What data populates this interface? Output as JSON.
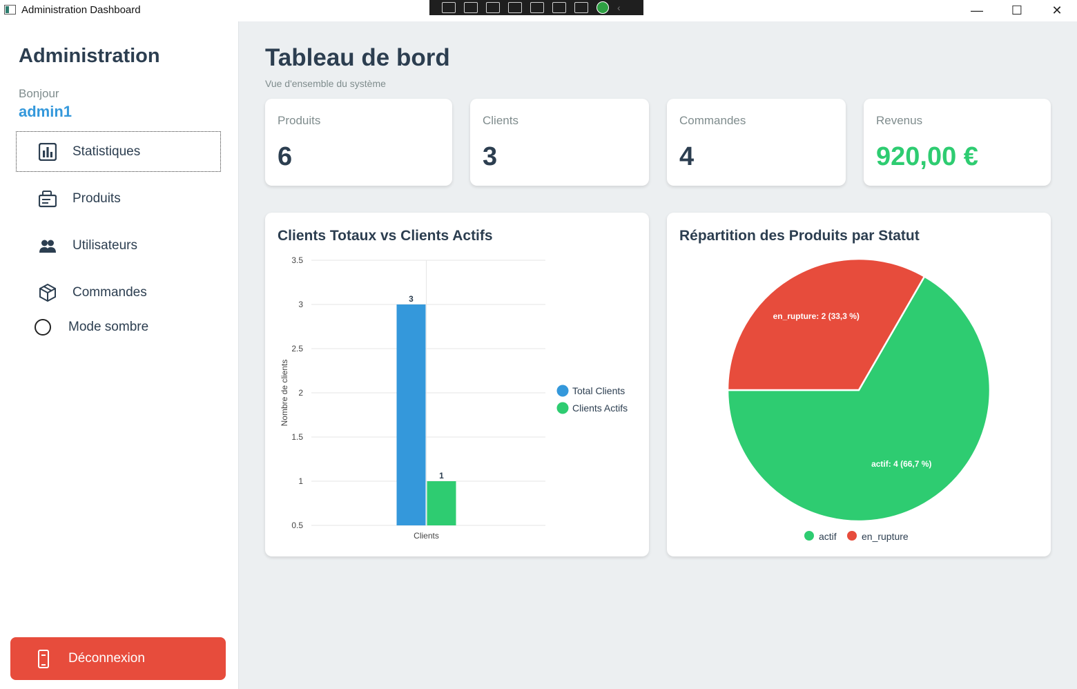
{
  "window": {
    "title": "Administration Dashboard",
    "controls": {
      "minimize": "—",
      "maximize": "☐",
      "close": "✕"
    }
  },
  "sidebar": {
    "brand": "Administration",
    "greeting": "Bonjour",
    "username": "admin1",
    "items": [
      {
        "label": "Statistiques",
        "icon": "bar-chart-icon",
        "active": true
      },
      {
        "label": "Produits",
        "icon": "products-icon",
        "active": false
      },
      {
        "label": "Utilisateurs",
        "icon": "users-icon",
        "active": false
      },
      {
        "label": "Commandes",
        "icon": "box-icon",
        "active": false
      }
    ],
    "dark_mode_label": "Mode sombre",
    "logout_label": "Déconnexion"
  },
  "header": {
    "title": "Tableau de bord",
    "subtitle": "Vue d'ensemble du système"
  },
  "stats": [
    {
      "label": "Produits",
      "value": "6"
    },
    {
      "label": "Clients",
      "value": "3"
    },
    {
      "label": "Commandes",
      "value": "4"
    },
    {
      "label": "Revenus",
      "value": "920,00 €"
    }
  ],
  "colors": {
    "accent": "#3498db",
    "green": "#2ecc71",
    "red": "#e74c3c",
    "text": "#2c3e50"
  },
  "chart_data": [
    {
      "type": "bar",
      "title": "Clients Totaux vs Clients Actifs",
      "categories": [
        "Clients"
      ],
      "ylabel": "Nombre de clients",
      "xlabel": "",
      "ylim": [
        0.5,
        3.5
      ],
      "yticks": [
        "0.5",
        "1",
        "1.5",
        "2",
        "2.5",
        "3",
        "3.5"
      ],
      "grid": true,
      "legend": "right",
      "series": [
        {
          "name": "Total Clients",
          "values": [
            3
          ],
          "labels": [
            "3"
          ],
          "color": "#3498db"
        },
        {
          "name": "Clients Actifs",
          "values": [
            1
          ],
          "labels": [
            "1"
          ],
          "color": "#2ecc71"
        }
      ]
    },
    {
      "type": "pie",
      "title": "Répartition des Produits par Statut",
      "legend": "bottom",
      "slices": [
        {
          "name": "actif",
          "value": 4,
          "label": "actif: 4 (66,7 %)",
          "color": "#2ecc71"
        },
        {
          "name": "en_rupture",
          "value": 2,
          "label": "en_rupture: 2 (33,3 %)",
          "color": "#e74c3c"
        }
      ]
    }
  ]
}
